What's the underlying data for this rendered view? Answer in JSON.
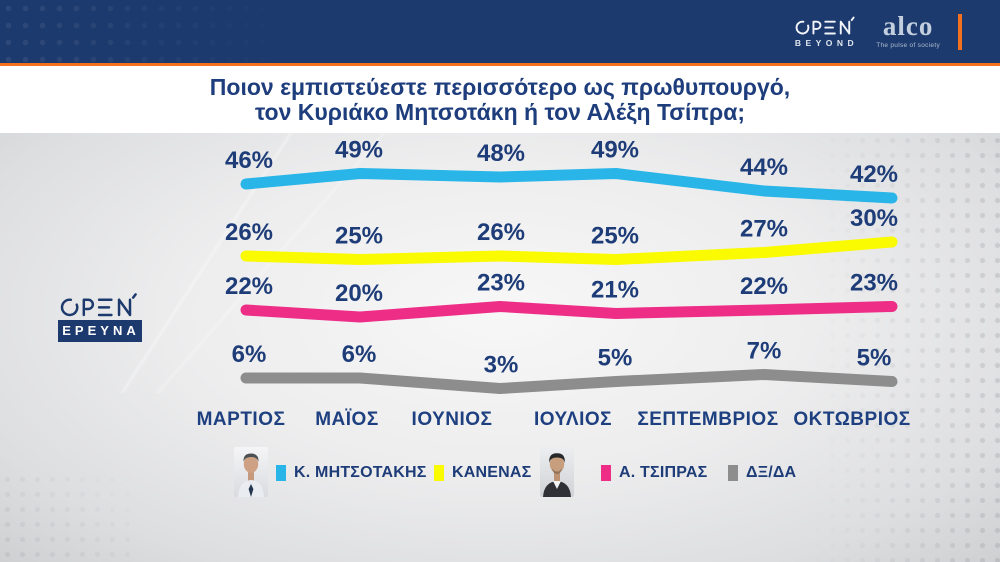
{
  "header": {
    "open_beyond": {
      "open": "OPEN",
      "beyond": "BEYOND"
    },
    "alco": {
      "name": "alco",
      "tagline": "The pulse of society"
    }
  },
  "title": {
    "line1": "Ποιον εμπιστεύεστε περισσότερο ως πρωθυπουργό,",
    "line2": "τον Κυριάκο Μητσοτάκη ή τον Αλέξη Τσίπρα;"
  },
  "side_logo": {
    "open": "OPEN",
    "label": "ΕΡΕΥΝΑ"
  },
  "chart_data": {
    "type": "line",
    "title": "Ποιον εμπιστεύεστε περισσότερο ως πρωθυπουργό, τον Κυριάκο Μητσοτάκη ή τον Αλέξη Τσίπρα;",
    "categories": [
      "ΜΑΡΤΙΟΣ",
      "ΜΑΪΟΣ",
      "ΙΟΥΝΙΟΣ",
      "ΙΟΥΛΙΟΣ",
      "ΣΕΠΤΕΜΒΡΙΟΣ",
      "ΟΚΤΩΒΡΙΟΣ"
    ],
    "series": [
      {
        "name": "Κ. ΜΗΤΣΟΤΑΚΗΣ",
        "color": "#29b5e8",
        "values": [
          46,
          49,
          48,
          49,
          44,
          42
        ]
      },
      {
        "name": "ΚΑΝΕΝΑΣ",
        "color": "#fafa00",
        "values": [
          26,
          25,
          26,
          25,
          27,
          30
        ]
      },
      {
        "name": "Α. ΤΣΙΠΡΑΣ",
        "color": "#ee2d87",
        "values": [
          22,
          20,
          23,
          21,
          22,
          23
        ]
      },
      {
        "name": "ΔΞ/ΔΑ",
        "color": "#8d8d8d",
        "values": [
          6,
          6,
          3,
          5,
          7,
          5
        ]
      }
    ],
    "value_suffix": "%",
    "grid": false,
    "legend_position": "bottom",
    "y_axis_visible": false
  },
  "legend": {
    "items": [
      {
        "label": "Κ. ΜΗΤΣΟΤΑΚΗΣ",
        "color": "#29b5e8",
        "photo": "mitsotakis"
      },
      {
        "label": "ΚΑΝΕΝΑΣ",
        "color": "#fafa00",
        "photo": null
      },
      {
        "label": "Α. ΤΣΙΠΡΑΣ",
        "color": "#ee2d87",
        "photo": "tsipras"
      },
      {
        "label": "ΔΞ/ΔΑ",
        "color": "#8d8d8d",
        "photo": null
      }
    ]
  },
  "colors": {
    "header_navy": "#1d3a6e",
    "brand_orange": "#f3701d",
    "text_navy": "#1d3c78",
    "studio_gray": "#e4e5e7"
  }
}
